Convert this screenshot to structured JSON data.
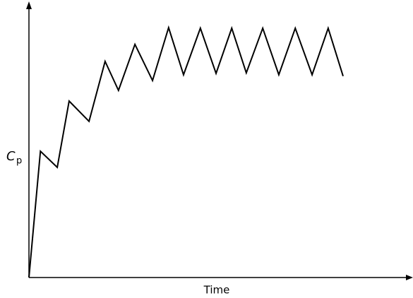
{
  "chart_data": {
    "type": "line",
    "xlabel": "Time",
    "ylabel": "C",
    "ylabel_subscript": "p",
    "x": [
      0,
      3,
      7.4,
      10.5,
      15.7,
      19.9,
      23.4,
      27.7,
      32.3,
      36.5,
      40.4,
      44.8,
      48.9,
      53,
      56.8,
      61.1,
      65.3,
      69.6,
      74,
      78.2,
      82.1
    ],
    "series": [
      {
        "color": "#000000",
        "values": [
          0,
          46.1,
          40.2,
          64.4,
          57,
          78.9,
          68.3,
          85.1,
          71.9,
          91.2,
          74,
          91,
          74.5,
          91,
          74.7,
          91,
          74,
          91,
          74,
          91,
          73.5
        ]
      }
    ],
    "xlim": [
      0,
      100
    ],
    "ylim": [
      0,
      100
    ]
  }
}
